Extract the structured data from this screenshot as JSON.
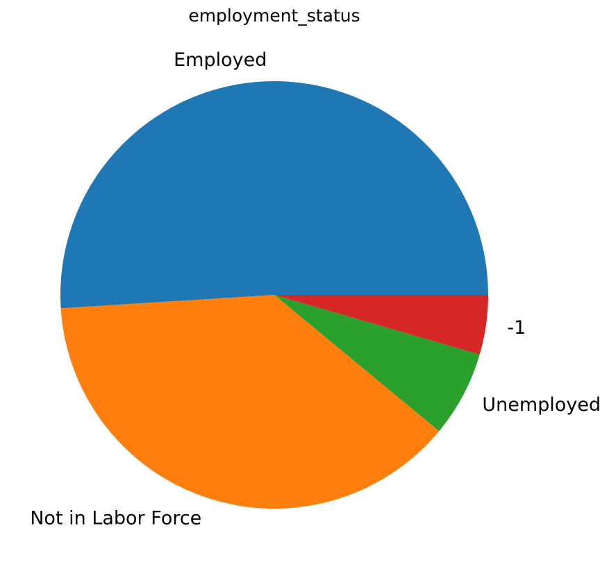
{
  "chart_data": {
    "type": "pie",
    "title": "employment_status",
    "slices": [
      {
        "label": "Employed",
        "value": 51.0,
        "color": "#1f77b4"
      },
      {
        "label": "Not in Labor Force",
        "value": 38.0,
        "color": "#ff7f0e"
      },
      {
        "label": "Unemployed",
        "value": 6.5,
        "color": "#2ca02c"
      },
      {
        "label": "-1",
        "value": 4.5,
        "color": "#d62728"
      }
    ],
    "start_angle_deg": 0,
    "direction": "counterclockwise",
    "legend": "none"
  }
}
